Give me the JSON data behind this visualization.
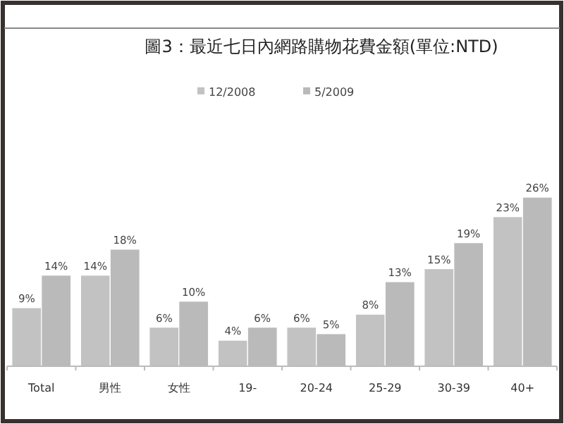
{
  "chart_data": {
    "type": "bar",
    "title": "圖3：最近七日內網路購物花費金額(單位:NTD)",
    "legend": "top",
    "categories": [
      "Total",
      "男性",
      "女性",
      "19-",
      "20-24",
      "25-29",
      "30-39",
      "40+"
    ],
    "series": [
      {
        "name": "12/2008",
        "color": "#c2c2c2",
        "values": [
          9,
          14,
          6,
          4,
          6,
          8,
          15,
          23
        ],
        "value_labels": [
          "9%",
          "14%",
          "6%",
          "4%",
          "6%",
          "8%",
          "15%",
          "23%"
        ]
      },
      {
        "name": "5/2009",
        "color": "#bababa",
        "values": [
          14,
          18,
          10,
          6,
          5,
          13,
          19,
          26
        ],
        "value_labels": [
          "14%",
          "18%",
          "10%",
          "6%",
          "5%",
          "13%",
          "19%",
          "26%"
        ]
      }
    ]
  }
}
